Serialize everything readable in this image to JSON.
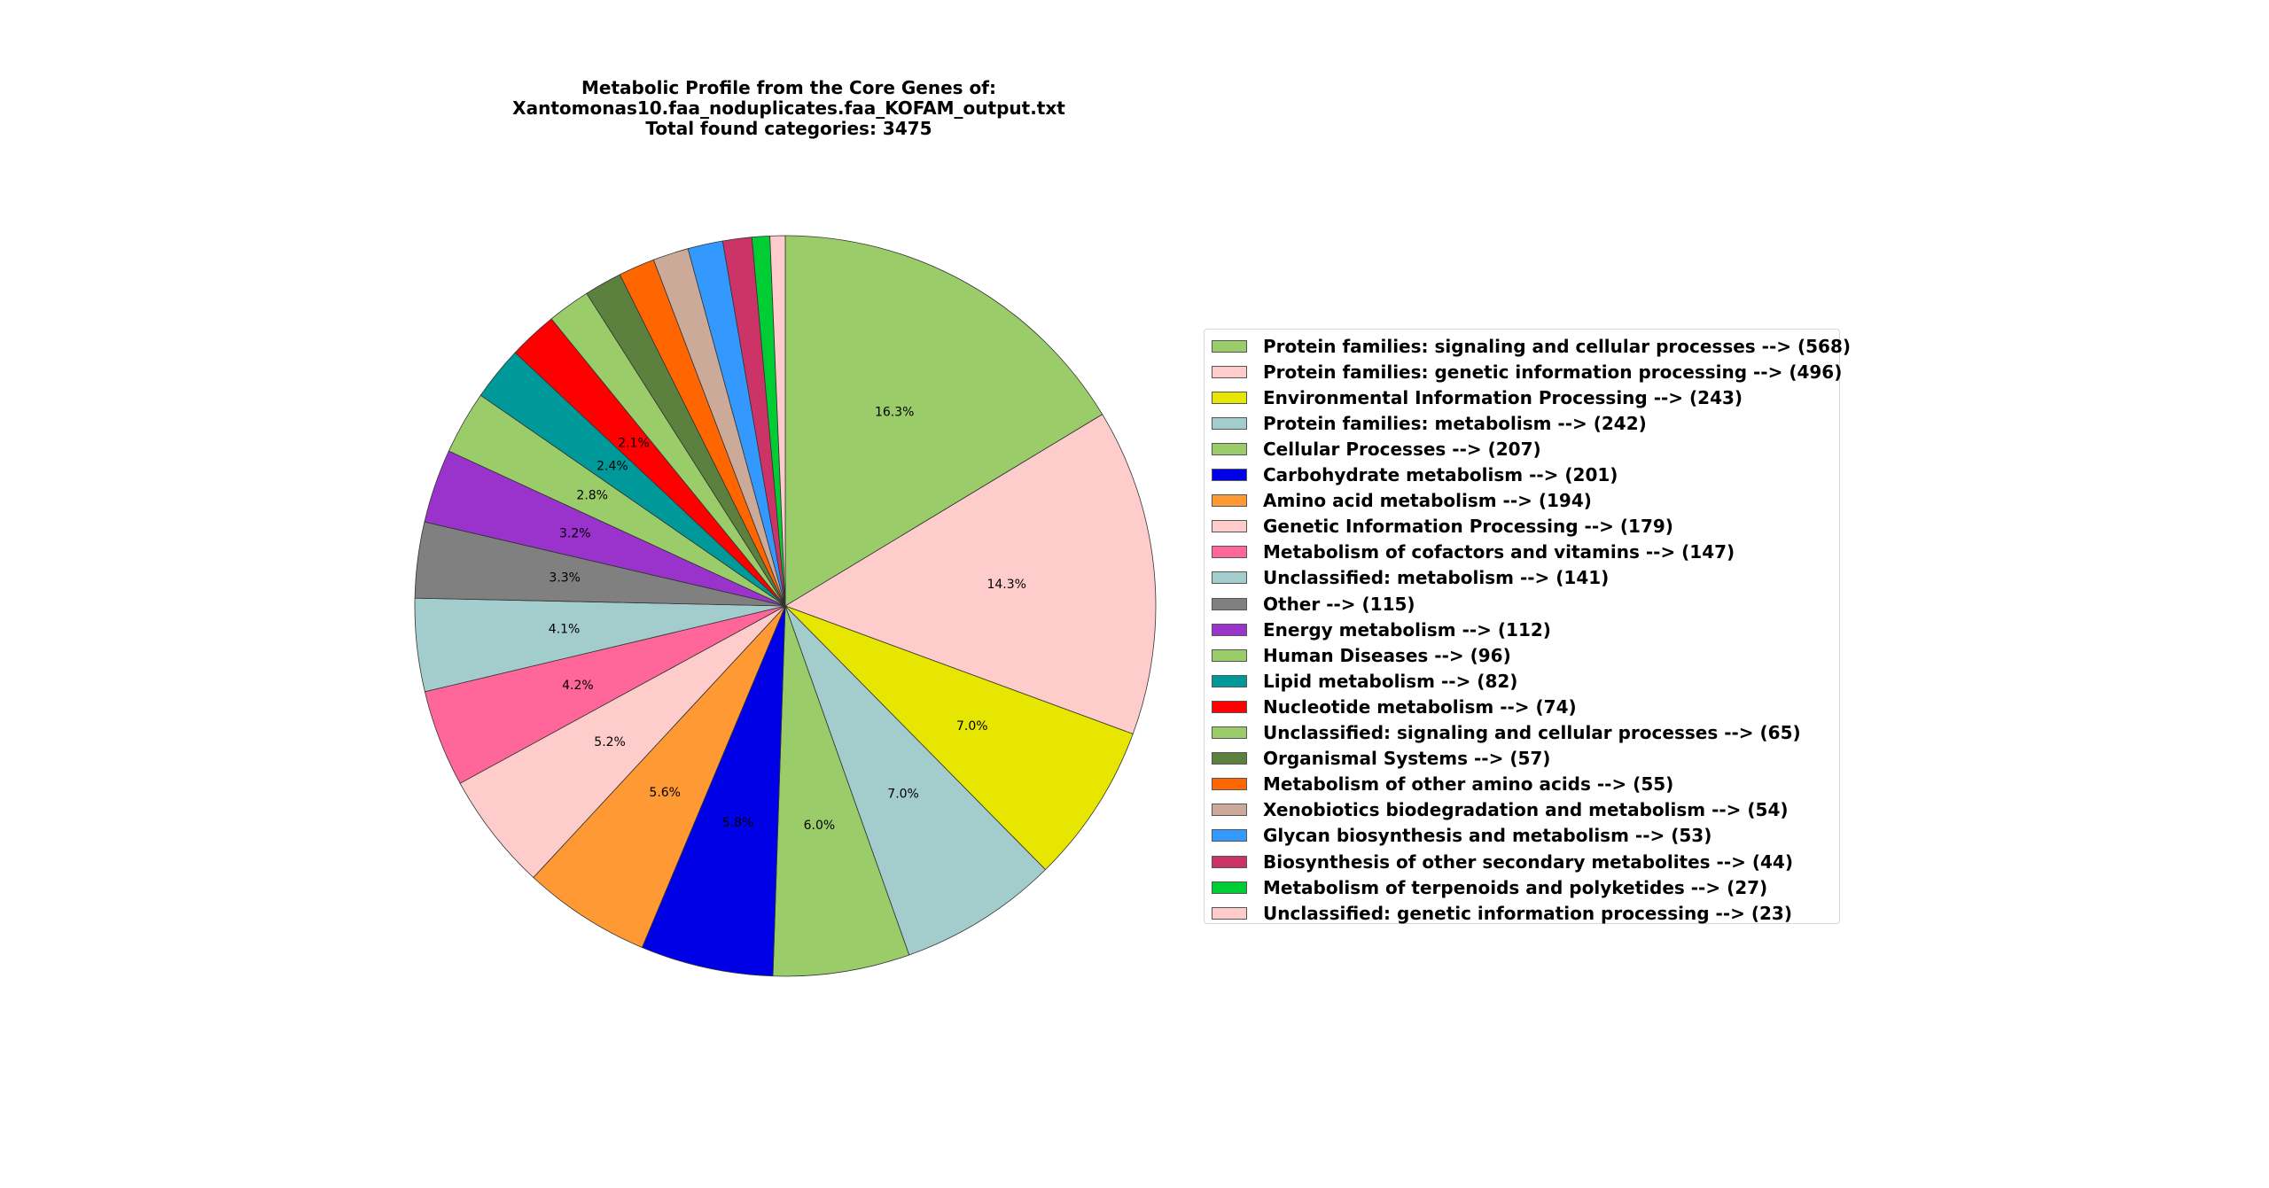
{
  "chart_data": {
    "type": "pie",
    "title_lines": [
      "Metabolic Profile from the Core Genes of:",
      "Xantomonas10.faa_noduplicates.faa_KOFAM_output.txt",
      "Total found categories: 3475"
    ],
    "total": 3475,
    "start_angle_deg": 90,
    "direction": "clockwise",
    "legend_placement": "right",
    "slices": [
      {
        "label": "Protein families: signaling and cellular processes --> (568)",
        "value": 568,
        "pct_label": "16.3%",
        "color": "#9acd6a"
      },
      {
        "label": "Protein families: genetic information processing --> (496)",
        "value": 496,
        "pct_label": "14.3%",
        "color": "#ffcccc"
      },
      {
        "label": "Environmental Information Processing --> (243)",
        "value": 243,
        "pct_label": "7.0%",
        "color": "#e6e600"
      },
      {
        "label": "Protein families: metabolism --> (242)",
        "value": 242,
        "pct_label": "7.0%",
        "color": "#a3cccc"
      },
      {
        "label": "Cellular Processes --> (207)",
        "value": 207,
        "pct_label": "6.0%",
        "color": "#9acd6a"
      },
      {
        "label": "Carbohydrate metabolism --> (201)",
        "value": 201,
        "pct_label": "5.8%",
        "color": "#0000e6"
      },
      {
        "label": "Amino acid metabolism --> (194)",
        "value": 194,
        "pct_label": "5.6%",
        "color": "#ff9933"
      },
      {
        "label": "Genetic Information Processing --> (179)",
        "value": 179,
        "pct_label": "5.2%",
        "color": "#ffcccc"
      },
      {
        "label": "Metabolism of cofactors and vitamins --> (147)",
        "value": 147,
        "pct_label": "4.2%",
        "color": "#ff6699"
      },
      {
        "label": "Unclassified: metabolism --> (141)",
        "value": 141,
        "pct_label": "4.1%",
        "color": "#a3cccc"
      },
      {
        "label": "Other --> (115)",
        "value": 115,
        "pct_label": "3.3%",
        "color": "#808080"
      },
      {
        "label": "Energy metabolism --> (112)",
        "value": 112,
        "pct_label": "3.2%",
        "color": "#9933cc"
      },
      {
        "label": "Human Diseases --> (96)",
        "value": 96,
        "pct_label": "2.8%",
        "color": "#9acd6a"
      },
      {
        "label": "Lipid metabolism --> (82)",
        "value": 82,
        "pct_label": "2.4%",
        "color": "#009999"
      },
      {
        "label": "Nucleotide metabolism --> (74)",
        "value": 74,
        "pct_label": "2.1%",
        "color": "#ff0000"
      },
      {
        "label": "Unclassified: signaling and cellular processes --> (65)",
        "value": 65,
        "pct_label": "",
        "color": "#9acd6a"
      },
      {
        "label": "Organismal Systems --> (57)",
        "value": 57,
        "pct_label": "",
        "color": "#5c803d"
      },
      {
        "label": "Metabolism of other amino acids --> (55)",
        "value": 55,
        "pct_label": "",
        "color": "#ff6600"
      },
      {
        "label": "Xenobiotics biodegradation and metabolism --> (54)",
        "value": 54,
        "pct_label": "",
        "color": "#ccaa99"
      },
      {
        "label": "Glycan biosynthesis and metabolism --> (53)",
        "value": 53,
        "pct_label": "",
        "color": "#3399ff"
      },
      {
        "label": "Biosynthesis of other secondary metabolites --> (44)",
        "value": 44,
        "pct_label": "",
        "color": "#cc3366"
      },
      {
        "label": "Metabolism of terpenoids and polyketides --> (27)",
        "value": 27,
        "pct_label": "",
        "color": "#00cc33"
      },
      {
        "label": "Unclassified: genetic information processing --> (23)",
        "value": 23,
        "pct_label": "",
        "color": "#ffcccc"
      }
    ]
  }
}
